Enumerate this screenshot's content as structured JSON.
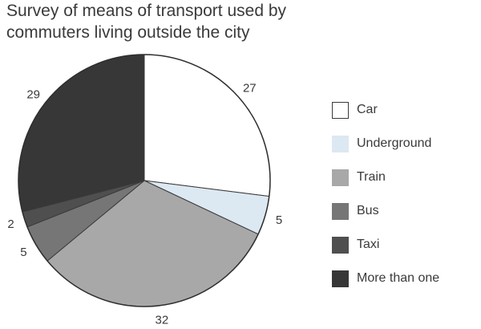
{
  "chart_data": {
    "type": "pie",
    "title_lines": [
      "Survey of means of transport used by",
      "commuters living outside the city"
    ],
    "slices": [
      {
        "label": "Car",
        "value": 27,
        "color": "#ffffff"
      },
      {
        "label": "Underground",
        "value": 5,
        "color": "#dce8f2"
      },
      {
        "label": "Train",
        "value": 32,
        "color": "#a8a8a8"
      },
      {
        "label": "Bus",
        "value": 5,
        "color": "#767676"
      },
      {
        "label": "Taxi",
        "value": 2,
        "color": "#4f4f4f"
      },
      {
        "label": "More than one",
        "value": 29,
        "color": "#373737"
      }
    ],
    "start_angle": "12 o'clock",
    "direction": "clockwise",
    "legend_position": "right"
  }
}
